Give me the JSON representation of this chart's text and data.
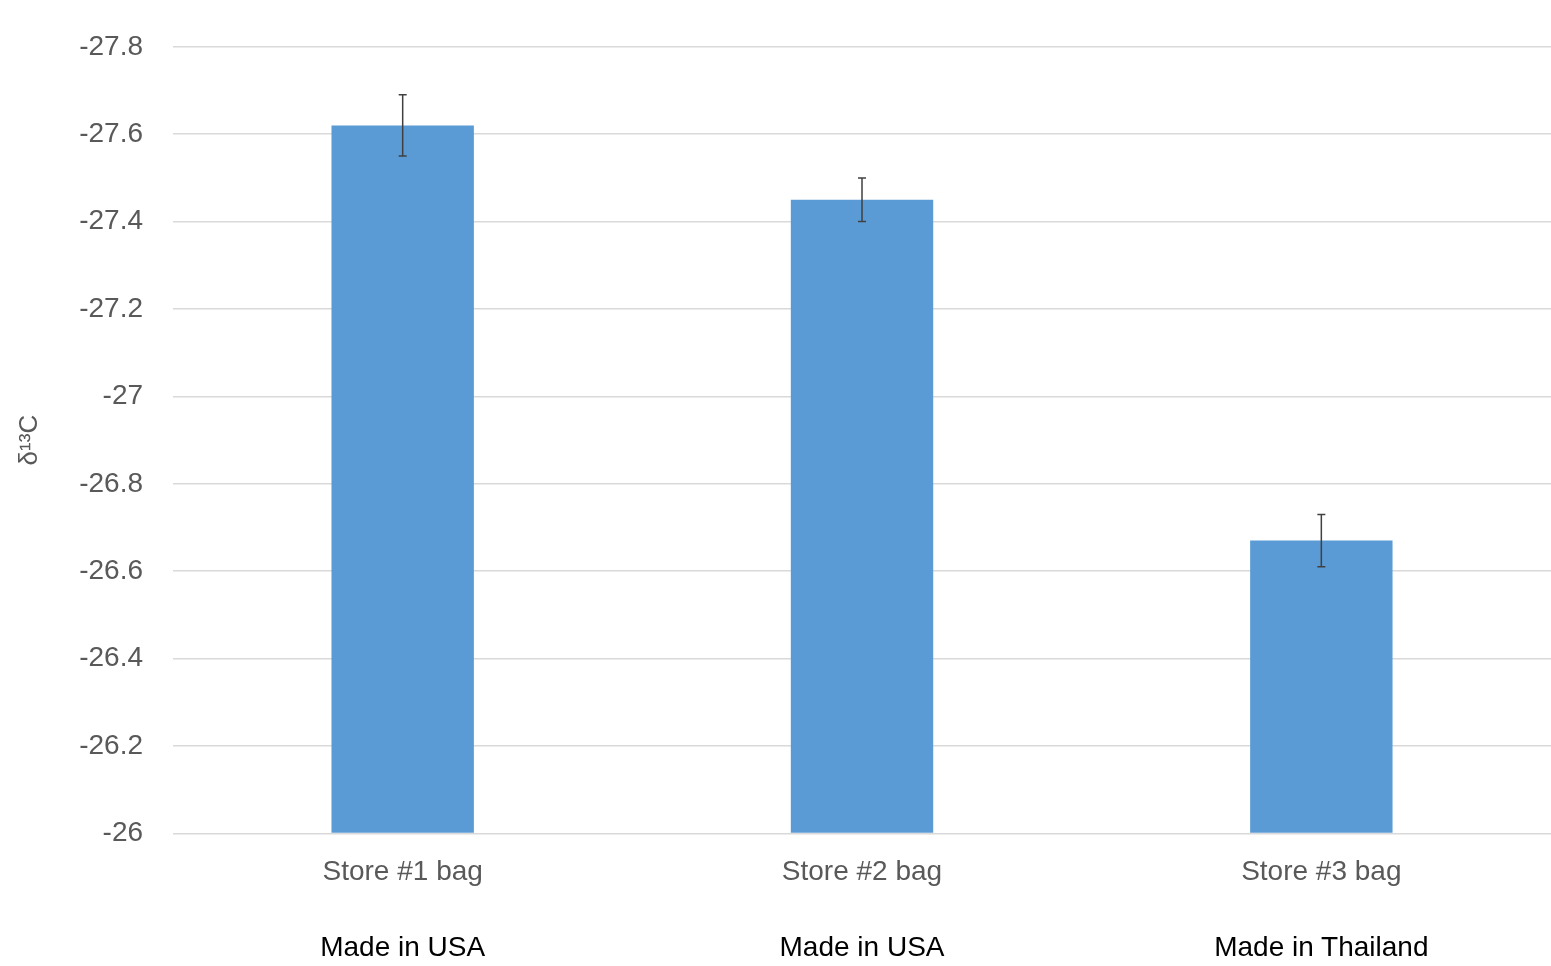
{
  "chart_data": {
    "type": "bar",
    "ylabel": "δ¹³C",
    "categories": [
      "Store #1 bag",
      "Store #2 bag",
      "Store #3 bag"
    ],
    "values": [
      -27.62,
      -27.45,
      -26.67
    ],
    "errors": [
      0.07,
      0.05,
      0.06
    ],
    "color": "#5b9bd5",
    "ylim": [
      -26,
      -27.8
    ],
    "yticks": [
      -26,
      -26.2,
      -26.4,
      -26.6,
      -26.8,
      -27,
      -27.2,
      -27.4,
      -27.6,
      -27.8
    ],
    "grid": "y",
    "legend": false,
    "annotations": [
      "Made in USA",
      "Made in USA",
      "Made in Thailand"
    ]
  }
}
